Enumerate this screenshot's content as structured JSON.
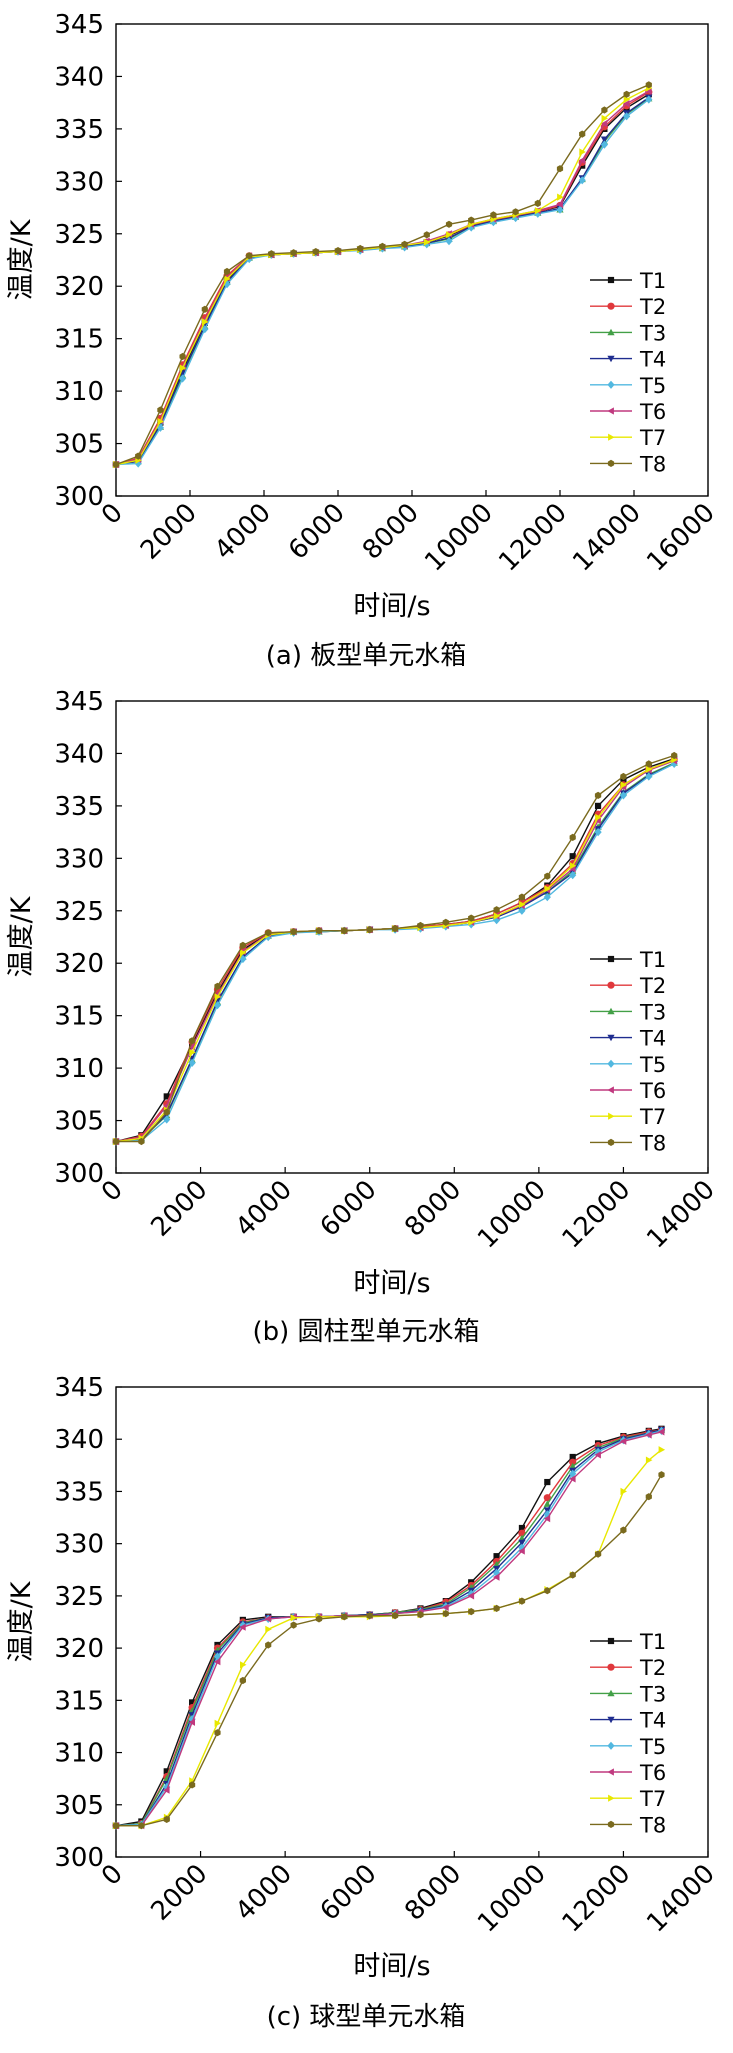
{
  "figure": {
    "series_names": [
      "T1",
      "T2",
      "T3",
      "T4",
      "T5",
      "T6",
      "T7",
      "T8"
    ],
    "series_colors": [
      "#111111",
      "#e0383c",
      "#43a047",
      "#1f2d8f",
      "#52b8e0",
      "#c0397f",
      "#e8e800",
      "#7a6a1e"
    ],
    "legend_swatch_colors": [
      "#111111",
      "#e0383c",
      "#43a047",
      "#1f2d8f",
      "#52b8e0",
      "#c0397f",
      "#e8e800",
      "#7a6a1e"
    ]
  },
  "chart_data": [
    {
      "id": "a",
      "type": "line",
      "caption": "(a) 板型单元水箱",
      "xlabel": "时间/s",
      "ylabel": "温度/K",
      "xlim": [
        0,
        16000
      ],
      "ylim": [
        300,
        345
      ],
      "xticks": [
        "0",
        "2000",
        "4000",
        "6000",
        "8000",
        "10000",
        "12000",
        "14000",
        "16000"
      ],
      "yticks": [
        "300",
        "305",
        "310",
        "315",
        "320",
        "325",
        "330",
        "335",
        "340",
        "345"
      ],
      "legend": [
        "T1",
        "T2",
        "T3",
        "T4",
        "T5",
        "T6",
        "T7",
        "T8"
      ],
      "x": [
        0,
        600,
        1200,
        1800,
        2400,
        3000,
        3600,
        4200,
        4800,
        5400,
        6000,
        6600,
        7200,
        7800,
        8400,
        9000,
        9600,
        10200,
        10800,
        11400,
        12000,
        12600,
        13200,
        13800,
        14400
      ],
      "series": [
        {
          "name": "T1",
          "values": [
            303,
            303.5,
            307,
            312,
            316.5,
            320.5,
            322.8,
            323,
            323.1,
            323.2,
            323.3,
            323.5,
            323.7,
            323.8,
            324.2,
            324.8,
            325.8,
            326.3,
            326.7,
            327.1,
            327.6,
            331.5,
            335,
            337,
            338.3
          ]
        },
        {
          "name": "T2",
          "values": [
            303,
            303.6,
            307.4,
            312.5,
            317,
            321,
            322.9,
            323,
            323.1,
            323.2,
            323.3,
            323.5,
            323.7,
            323.9,
            324.2,
            324.9,
            325.8,
            326.3,
            326.7,
            327.1,
            327.7,
            331.8,
            335.2,
            337.2,
            338.5
          ]
        },
        {
          "name": "T3",
          "values": [
            303,
            303.3,
            306.6,
            311.5,
            316.2,
            320.4,
            322.7,
            323,
            323.1,
            323.2,
            323.3,
            323.5,
            323.6,
            323.8,
            324.1,
            324.5,
            325.7,
            326.2,
            326.6,
            327,
            327.3,
            330.2,
            333.8,
            336.4,
            337.9
          ]
        },
        {
          "name": "T4",
          "values": [
            303,
            303.3,
            306.8,
            311.7,
            316.2,
            320.4,
            322.7,
            323,
            323.1,
            323.2,
            323.3,
            323.5,
            323.6,
            323.8,
            324.1,
            324.6,
            325.7,
            326.2,
            326.6,
            327,
            327.4,
            330.3,
            334,
            336.5,
            338
          ]
        },
        {
          "name": "T5",
          "values": [
            303,
            303.1,
            306.5,
            311.2,
            315.9,
            320.2,
            322.6,
            323,
            323.1,
            323.2,
            323.3,
            323.4,
            323.6,
            323.7,
            324,
            324.3,
            325.6,
            326.1,
            326.5,
            326.9,
            327.3,
            330.1,
            333.5,
            336.2,
            337.8
          ]
        },
        {
          "name": "T6",
          "values": [
            303,
            303.5,
            307.2,
            312.3,
            316.8,
            320.8,
            322.9,
            323,
            323.1,
            323.2,
            323.3,
            323.5,
            323.7,
            323.9,
            324.3,
            325,
            325.9,
            326.4,
            326.8,
            327.2,
            327.8,
            332,
            335.5,
            337.4,
            338.6
          ]
        },
        {
          "name": "T7",
          "values": [
            303,
            303.4,
            307.1,
            312.2,
            316.6,
            320.7,
            322.8,
            323,
            323.1,
            323.2,
            323.3,
            323.5,
            323.7,
            323.9,
            324.2,
            324.9,
            325.9,
            326.4,
            326.8,
            327.2,
            328.5,
            332.8,
            336,
            337.8,
            338.9
          ]
        },
        {
          "name": "T8",
          "values": [
            303,
            303.8,
            308.2,
            313.3,
            317.8,
            321.4,
            322.9,
            323.1,
            323.2,
            323.3,
            323.4,
            323.6,
            323.8,
            324,
            324.9,
            325.9,
            326.3,
            326.8,
            327.1,
            327.9,
            331.2,
            334.5,
            336.8,
            338.3,
            339.2
          ]
        }
      ]
    },
    {
      "id": "b",
      "type": "line",
      "caption": "(b) 圆柱型单元水箱",
      "xlabel": "时间/s",
      "ylabel": "温度/K",
      "xlim": [
        0,
        14000
      ],
      "ylim": [
        300,
        345
      ],
      "xticks": [
        "0",
        "2000",
        "4000",
        "6000",
        "8000",
        "10000",
        "12000",
        "14000"
      ],
      "yticks": [
        "300",
        "305",
        "310",
        "315",
        "320",
        "325",
        "330",
        "335",
        "340",
        "345"
      ],
      "legend": [
        "T1",
        "T2",
        "T3",
        "T4",
        "T5",
        "T6",
        "T7",
        "T8"
      ],
      "x": [
        0,
        600,
        1200,
        1800,
        2400,
        3000,
        3600,
        4200,
        4800,
        5400,
        6000,
        6600,
        7200,
        7800,
        8400,
        9000,
        9600,
        10200,
        10800,
        11400,
        12000,
        12600,
        13200
      ],
      "series": [
        {
          "name": "T1",
          "values": [
            303,
            303.6,
            307.3,
            312.2,
            317.2,
            321.3,
            322.8,
            323,
            323.1,
            323.1,
            323.2,
            323.3,
            323.5,
            323.7,
            324,
            324.7,
            325.8,
            327.4,
            330.2,
            335,
            337.5,
            338.7,
            339.5
          ]
        },
        {
          "name": "T2",
          "values": [
            303,
            303.5,
            306.6,
            312.5,
            317.5,
            321.5,
            322.9,
            323,
            323.1,
            323.1,
            323.2,
            323.3,
            323.5,
            323.7,
            324,
            324.7,
            325.8,
            327.2,
            329.5,
            334.2,
            337,
            338.5,
            339.4
          ]
        },
        {
          "name": "T3",
          "values": [
            303,
            303.2,
            305.5,
            310.8,
            316.3,
            320.6,
            322.6,
            323,
            323,
            323.1,
            323.2,
            323.3,
            323.4,
            323.6,
            323.9,
            324.4,
            325.4,
            326.8,
            328.8,
            333,
            336.3,
            338,
            339.1
          ]
        },
        {
          "name": "T4",
          "values": [
            303,
            303.2,
            305.6,
            310.9,
            316.4,
            320.6,
            322.6,
            323,
            323,
            323.1,
            323.2,
            323.3,
            323.4,
            323.6,
            323.9,
            324.4,
            325.4,
            326.8,
            328.6,
            332.8,
            336.2,
            337.9,
            339
          ]
        },
        {
          "name": "T5",
          "values": [
            303,
            303.1,
            305.1,
            310.5,
            316,
            320.4,
            322.5,
            322.9,
            323,
            323.1,
            323.2,
            323.2,
            323.3,
            323.5,
            323.7,
            324.1,
            325,
            326.3,
            328.4,
            332.5,
            336,
            337.8,
            339
          ]
        },
        {
          "name": "T6",
          "values": [
            303,
            303.4,
            306.4,
            312,
            317,
            321.1,
            322.8,
            323,
            323.1,
            323.1,
            323.2,
            323.3,
            323.4,
            323.6,
            323.9,
            324.5,
            325.5,
            327,
            329,
            333.6,
            336.8,
            338.4,
            339.3
          ]
        },
        {
          "name": "T7",
          "values": [
            303,
            303.3,
            306,
            311.5,
            316.8,
            321,
            322.7,
            323,
            323.1,
            323.1,
            323.2,
            323.3,
            323.4,
            323.6,
            323.9,
            324.5,
            325.6,
            327.1,
            329.3,
            333.9,
            337,
            338.5,
            339.4
          ]
        },
        {
          "name": "T8",
          "values": [
            303,
            303,
            305.8,
            312.6,
            317.8,
            321.7,
            322.9,
            323,
            323.1,
            323.1,
            323.2,
            323.3,
            323.6,
            323.9,
            324.3,
            325.1,
            326.3,
            328.3,
            332,
            336,
            337.8,
            339,
            339.8
          ]
        }
      ]
    },
    {
      "id": "c",
      "type": "line",
      "caption": "(c) 球型单元水箱",
      "xlabel": "时间/s",
      "ylabel": "温度/K",
      "xlim": [
        0,
        14000
      ],
      "ylim": [
        300,
        345
      ],
      "xticks": [
        "0",
        "2000",
        "4000",
        "6000",
        "8000",
        "10000",
        "12000",
        "14000"
      ],
      "yticks": [
        "300",
        "305",
        "310",
        "315",
        "320",
        "325",
        "330",
        "335",
        "340",
        "345"
      ],
      "legend": [
        "T1",
        "T2",
        "T3",
        "T4",
        "T5",
        "T6",
        "T7",
        "T8"
      ],
      "x": [
        0,
        600,
        1200,
        1800,
        2400,
        3000,
        3600,
        4200,
        4800,
        5400,
        6000,
        6600,
        7200,
        7800,
        8400,
        9000,
        9600,
        10200,
        10800,
        11400,
        12000,
        12600,
        12900
      ],
      "series": [
        {
          "name": "T1",
          "values": [
            303,
            303.4,
            308.2,
            314.8,
            320.3,
            322.7,
            323,
            323,
            323,
            323.1,
            323.2,
            323.4,
            323.8,
            324.5,
            326.3,
            328.8,
            331.5,
            335.9,
            338.3,
            339.6,
            340.3,
            340.8,
            341
          ]
        },
        {
          "name": "T2",
          "values": [
            303,
            303.2,
            307.7,
            314.3,
            320,
            322.5,
            322.9,
            323,
            323,
            323.1,
            323.2,
            323.4,
            323.7,
            324.4,
            326,
            328.3,
            331,
            334.4,
            337.8,
            339.4,
            340.2,
            340.7,
            340.9
          ]
        },
        {
          "name": "T3",
          "values": [
            303,
            303.2,
            307.5,
            314,
            319.8,
            322.4,
            322.9,
            323,
            323,
            323.1,
            323.2,
            323.4,
            323.7,
            324.2,
            325.8,
            328,
            330.5,
            333.8,
            337.4,
            339.2,
            340.1,
            340.6,
            340.9
          ]
        },
        {
          "name": "T4",
          "values": [
            303,
            303.1,
            307,
            313.6,
            319.5,
            322.3,
            322.9,
            323,
            323,
            323.1,
            323.2,
            323.3,
            323.6,
            324.1,
            325.5,
            327.6,
            330.1,
            333.2,
            337,
            339,
            340,
            340.6,
            340.9
          ]
        },
        {
          "name": "T5",
          "values": [
            303,
            303.1,
            306.7,
            313.2,
            319.2,
            322.2,
            322.8,
            323,
            323,
            323.1,
            323.1,
            323.3,
            323.5,
            324,
            325.2,
            327.2,
            329.6,
            332.8,
            336.7,
            338.8,
            339.9,
            340.5,
            340.8
          ]
        },
        {
          "name": "T6",
          "values": [
            303,
            303,
            306.4,
            312.9,
            318.7,
            322,
            322.8,
            323,
            323,
            323.1,
            323.1,
            323.3,
            323.5,
            323.9,
            325,
            326.8,
            329.3,
            332.4,
            336.2,
            338.5,
            339.8,
            340.4,
            340.7
          ]
        },
        {
          "name": "T7",
          "values": [
            303,
            303,
            303.8,
            307.3,
            312.8,
            318.4,
            321.8,
            322.9,
            323,
            323,
            323,
            323.1,
            323.2,
            323.3,
            323.5,
            323.8,
            324.5,
            325.6,
            327,
            329,
            335,
            338,
            339
          ]
        },
        {
          "name": "T8",
          "values": [
            303,
            303,
            303.6,
            306.9,
            311.9,
            316.9,
            320.3,
            322.2,
            322.8,
            323,
            323.1,
            323.1,
            323.2,
            323.3,
            323.5,
            323.8,
            324.5,
            325.5,
            327,
            329,
            331.3,
            334.5,
            336.6
          ]
        }
      ]
    }
  ]
}
